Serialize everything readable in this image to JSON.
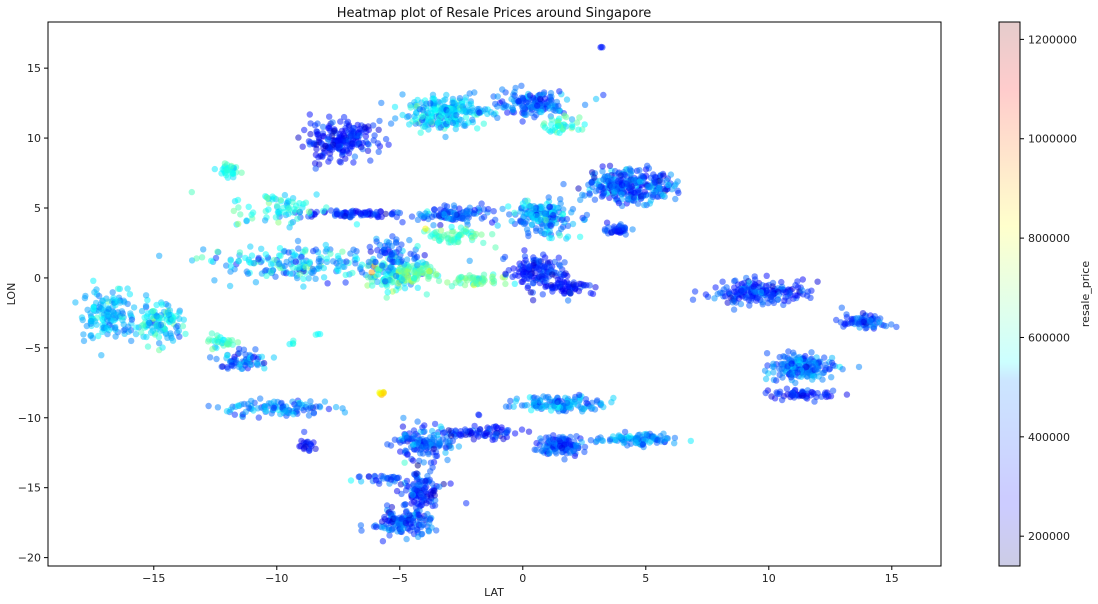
{
  "chart_data": {
    "type": "scatter",
    "title": "Heatmap plot of Resale Prices around Singapore",
    "xlabel": "LAT",
    "ylabel": "LON",
    "xlim": [
      -19.3,
      17.0
    ],
    "ylim": [
      -20.6,
      18.3
    ],
    "xticks": [
      -15,
      -10,
      -5,
      0,
      5,
      10,
      15
    ],
    "yticks": [
      -20,
      -15,
      -10,
      -5,
      0,
      5,
      10,
      15
    ],
    "grid": false,
    "colormap": "jet",
    "point_alpha": 0.5,
    "colorbar": {
      "label": "resale_price",
      "min": 140000,
      "max": 1235000,
      "ticks": [
        200000,
        400000,
        600000,
        800000,
        1000000,
        1200000
      ],
      "alpha": 0.2
    },
    "clusters": [
      {
        "x": -16.8,
        "y": -2.6,
        "sx": 0.9,
        "sy": 1.5,
        "n": 140,
        "price": 470000,
        "spread": 120000
      },
      {
        "x": -14.8,
        "y": -3.2,
        "sx": 0.7,
        "sy": 1.2,
        "n": 110,
        "price": 520000,
        "spread": 170000
      },
      {
        "x": -12.0,
        "y": 7.8,
        "sx": 0.35,
        "sy": 0.4,
        "n": 30,
        "price": 560000,
        "spread": 70000
      },
      {
        "x": -7.5,
        "y": 9.8,
        "sx": 1.3,
        "sy": 1.1,
        "n": 210,
        "price": 300000,
        "spread": 90000
      },
      {
        "x": -6.9,
        "y": 4.6,
        "sx": 1.5,
        "sy": 0.25,
        "n": 80,
        "price": 320000,
        "spread": 110000
      },
      {
        "x": -9.8,
        "y": 5.0,
        "sx": 1.8,
        "sy": 0.9,
        "n": 70,
        "price": 560000,
        "spread": 140000
      },
      {
        "x": -9.0,
        "y": 1.0,
        "sx": 3.2,
        "sy": 1.1,
        "n": 190,
        "price": 470000,
        "spread": 180000
      },
      {
        "x": -5.4,
        "y": 0.2,
        "sx": 1.1,
        "sy": 0.9,
        "n": 110,
        "price": 560000,
        "spread": 210000
      },
      {
        "x": -4.3,
        "y": 0.4,
        "sx": 0.6,
        "sy": 0.5,
        "n": 60,
        "price": 640000,
        "spread": 120000
      },
      {
        "x": -5.2,
        "y": 1.8,
        "sx": 0.9,
        "sy": 0.9,
        "n": 60,
        "price": 380000,
        "spread": 130000
      },
      {
        "x": -3.2,
        "y": 11.8,
        "sx": 1.4,
        "sy": 1.0,
        "n": 230,
        "price": 500000,
        "spread": 130000
      },
      {
        "x": 0.3,
        "y": 12.5,
        "sx": 1.5,
        "sy": 0.8,
        "n": 140,
        "price": 380000,
        "spread": 120000
      },
      {
        "x": 1.6,
        "y": 10.9,
        "sx": 0.6,
        "sy": 0.5,
        "n": 40,
        "price": 580000,
        "spread": 90000
      },
      {
        "x": -3.0,
        "y": 4.5,
        "sx": 1.5,
        "sy": 0.5,
        "n": 100,
        "price": 380000,
        "spread": 140000
      },
      {
        "x": -2.8,
        "y": 3.0,
        "sx": 1.1,
        "sy": 0.45,
        "n": 60,
        "price": 620000,
        "spread": 100000
      },
      {
        "x": 0.8,
        "y": 4.3,
        "sx": 1.1,
        "sy": 1.0,
        "n": 170,
        "price": 440000,
        "spread": 150000
      },
      {
        "x": 4.3,
        "y": 6.6,
        "sx": 1.5,
        "sy": 1.0,
        "n": 290,
        "price": 380000,
        "spread": 160000
      },
      {
        "x": 3.8,
        "y": 3.4,
        "sx": 0.5,
        "sy": 0.3,
        "n": 40,
        "price": 330000,
        "spread": 90000
      },
      {
        "x": -2.0,
        "y": -0.2,
        "sx": 1.0,
        "sy": 0.35,
        "n": 50,
        "price": 640000,
        "spread": 110000
      },
      {
        "x": 0.6,
        "y": 0.4,
        "sx": 0.9,
        "sy": 1.0,
        "n": 130,
        "price": 310000,
        "spread": 110000
      },
      {
        "x": 1.8,
        "y": -0.6,
        "sx": 0.9,
        "sy": 0.5,
        "n": 60,
        "price": 300000,
        "spread": 90000
      },
      {
        "x": 9.6,
        "y": -1.0,
        "sx": 1.6,
        "sy": 0.7,
        "n": 190,
        "price": 330000,
        "spread": 110000
      },
      {
        "x": 13.8,
        "y": -3.2,
        "sx": 0.7,
        "sy": 0.5,
        "n": 70,
        "price": 360000,
        "spread": 100000
      },
      {
        "x": 11.3,
        "y": -6.4,
        "sx": 1.1,
        "sy": 0.8,
        "n": 180,
        "price": 400000,
        "spread": 120000
      },
      {
        "x": 11.4,
        "y": -8.3,
        "sx": 1.2,
        "sy": 0.3,
        "n": 60,
        "price": 300000,
        "spread": 80000
      },
      {
        "x": -11.3,
        "y": -6.0,
        "sx": 0.8,
        "sy": 0.6,
        "n": 60,
        "price": 380000,
        "spread": 170000
      },
      {
        "x": -12.2,
        "y": -4.6,
        "sx": 0.5,
        "sy": 0.5,
        "n": 30,
        "price": 620000,
        "spread": 120000
      },
      {
        "x": -10.0,
        "y": -9.3,
        "sx": 1.7,
        "sy": 0.45,
        "n": 100,
        "price": 420000,
        "spread": 150000
      },
      {
        "x": -8.8,
        "y": -12.0,
        "sx": 0.35,
        "sy": 0.5,
        "n": 20,
        "price": 280000,
        "spread": 70000
      },
      {
        "x": -6.0,
        "y": -14.4,
        "sx": 1.4,
        "sy": 0.35,
        "n": 30,
        "price": 360000,
        "spread": 150000
      },
      {
        "x": -5.7,
        "y": -8.3,
        "sx": 0.12,
        "sy": 0.15,
        "n": 8,
        "price": 860000,
        "spread": 80000
      },
      {
        "x": -4.0,
        "y": -11.8,
        "sx": 0.9,
        "sy": 1.0,
        "n": 140,
        "price": 380000,
        "spread": 140000
      },
      {
        "x": -4.1,
        "y": -15.4,
        "sx": 0.7,
        "sy": 1.3,
        "n": 110,
        "price": 320000,
        "spread": 120000
      },
      {
        "x": -4.9,
        "y": -17.5,
        "sx": 1.0,
        "sy": 0.8,
        "n": 140,
        "price": 360000,
        "spread": 120000
      },
      {
        "x": -1.6,
        "y": -11.1,
        "sx": 1.2,
        "sy": 0.35,
        "n": 70,
        "price": 300000,
        "spread": 100000
      },
      {
        "x": 1.6,
        "y": -9.0,
        "sx": 1.4,
        "sy": 0.5,
        "n": 130,
        "price": 440000,
        "spread": 140000
      },
      {
        "x": 1.6,
        "y": -12.0,
        "sx": 0.8,
        "sy": 0.55,
        "n": 120,
        "price": 360000,
        "spread": 110000
      },
      {
        "x": 4.6,
        "y": -11.6,
        "sx": 1.3,
        "sy": 0.35,
        "n": 100,
        "price": 420000,
        "spread": 120000
      },
      {
        "x": 3.2,
        "y": 16.5,
        "sx": 0.05,
        "sy": 0.05,
        "n": 3,
        "price": 300000,
        "spread": 30000
      },
      {
        "x": -1.8,
        "y": -9.8,
        "sx": 0.05,
        "sy": 0.05,
        "n": 2,
        "price": 300000,
        "spread": 30000
      },
      {
        "x": -8.3,
        "y": -4.0,
        "sx": 0.1,
        "sy": 0.1,
        "n": 3,
        "price": 520000,
        "spread": 40000
      },
      {
        "x": -9.4,
        "y": -4.6,
        "sx": 0.2,
        "sy": 0.2,
        "n": 4,
        "price": 560000,
        "spread": 40000
      }
    ]
  }
}
